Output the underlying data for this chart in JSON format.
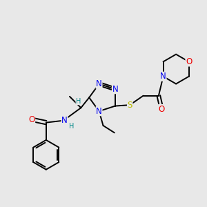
{
  "bg_color": "#e8e8e8",
  "atom_colors": {
    "C": "#000000",
    "N": "#0000ee",
    "O": "#ee0000",
    "S": "#bbbb00",
    "H": "#008888"
  },
  "bond_color": "#000000",
  "figsize": [
    3.0,
    3.0
  ],
  "dpi": 100,
  "xlim": [
    0,
    10
  ],
  "ylim": [
    0,
    10
  ],
  "lw": 1.4,
  "fs": 8.5
}
